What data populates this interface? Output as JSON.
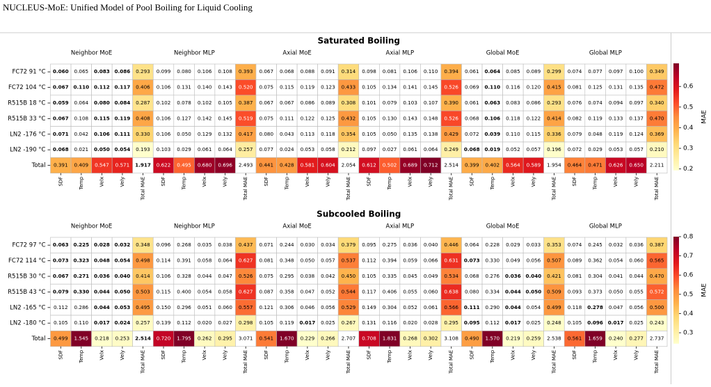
{
  "header": {
    "title": "NUCLEUS-MoE: Unified Model of Pool Boiling for Liquid Cooling"
  },
  "chart_data": [
    {
      "type": "heatmap",
      "title": "Saturated Boiling",
      "colormap": "YlOrRd",
      "groups": [
        "Neighbor MoE",
        "Neighbor MLP",
        "Axial MoE",
        "Axial MLP",
        "Global MoE",
        "Global MLP"
      ],
      "columns": [
        "SDF",
        "Temp",
        "Velx",
        "Vely",
        "Total MAE"
      ],
      "rows": [
        "FC72 91 °C",
        "FC72 104 °C",
        "R515B 18 °C",
        "R515B 33 °C",
        "LN2 -176 °C",
        "LN2 -190 °C",
        "Total"
      ],
      "values": [
        [
          0.06,
          0.065,
          0.083,
          0.086,
          0.293,
          0.099,
          0.08,
          0.106,
          0.108,
          0.393,
          0.067,
          0.068,
          0.088,
          0.091,
          0.314,
          0.098,
          0.081,
          0.106,
          0.11,
          0.394,
          0.061,
          0.064,
          0.085,
          0.089,
          0.299,
          0.074,
          0.077,
          0.097,
          0.1,
          0.349
        ],
        [
          0.067,
          0.11,
          0.112,
          0.117,
          0.406,
          0.106,
          0.131,
          0.14,
          0.143,
          0.52,
          0.075,
          0.115,
          0.119,
          0.123,
          0.433,
          0.105,
          0.134,
          0.141,
          0.145,
          0.526,
          0.069,
          0.11,
          0.116,
          0.12,
          0.415,
          0.081,
          0.125,
          0.131,
          0.135,
          0.472
        ],
        [
          0.059,
          0.064,
          0.08,
          0.084,
          0.287,
          0.102,
          0.078,
          0.102,
          0.105,
          0.387,
          0.067,
          0.067,
          0.086,
          0.089,
          0.308,
          0.101,
          0.079,
          0.103,
          0.107,
          0.39,
          0.061,
          0.063,
          0.083,
          0.086,
          0.293,
          0.076,
          0.074,
          0.094,
          0.097,
          0.34
        ],
        [
          0.067,
          0.108,
          0.115,
          0.119,
          0.408,
          0.106,
          0.127,
          0.142,
          0.145,
          0.519,
          0.075,
          0.111,
          0.122,
          0.125,
          0.432,
          0.105,
          0.13,
          0.143,
          0.148,
          0.526,
          0.068,
          0.106,
          0.118,
          0.122,
          0.414,
          0.082,
          0.119,
          0.133,
          0.137,
          0.47
        ],
        [
          0.071,
          0.042,
          0.106,
          0.111,
          0.33,
          0.106,
          0.05,
          0.129,
          0.132,
          0.417,
          0.08,
          0.043,
          0.113,
          0.118,
          0.354,
          0.105,
          0.05,
          0.135,
          0.138,
          0.429,
          0.072,
          0.039,
          0.11,
          0.115,
          0.336,
          0.079,
          0.048,
          0.119,
          0.124,
          0.369
        ],
        [
          0.068,
          0.021,
          0.05,
          0.054,
          0.193,
          0.103,
          0.029,
          0.061,
          0.064,
          0.257,
          0.077,
          0.024,
          0.053,
          0.058,
          0.212,
          0.097,
          0.027,
          0.061,
          0.064,
          0.249,
          0.068,
          0.019,
          0.052,
          0.057,
          0.196,
          0.072,
          0.029,
          0.053,
          0.057,
          0.21
        ],
        [
          0.391,
          0.409,
          0.547,
          0.571,
          1.917,
          0.622,
          0.495,
          0.68,
          0.696,
          2.493,
          0.441,
          0.428,
          0.581,
          0.604,
          2.054,
          0.612,
          0.502,
          0.689,
          0.712,
          2.514,
          0.399,
          0.402,
          0.564,
          0.589,
          1.954,
          0.464,
          0.471,
          0.626,
          0.65,
          2.211
        ]
      ],
      "value_labels": [
        [
          "0.060",
          "0.065",
          "0.083",
          "0.086",
          "0.293",
          "0.099",
          "0.080",
          "0.106",
          "0.108",
          "0.393",
          "0.067",
          "0.068",
          "0.088",
          "0.091",
          "0.314",
          "0.098",
          "0.081",
          "0.106",
          "0.110",
          "0.394",
          "0.061",
          "0.064",
          "0.085",
          "0.089",
          "0.299",
          "0.074",
          "0.077",
          "0.097",
          "0.100",
          "0.349"
        ],
        [
          "0.067",
          "0.110",
          "0.112",
          "0.117",
          "0.406",
          "0.106",
          "0.131",
          "0.140",
          "0.143",
          "0.520",
          "0.075",
          "0.115",
          "0.119",
          "0.123",
          "0.433",
          "0.105",
          "0.134",
          "0.141",
          "0.145",
          "0.526",
          "0.069",
          "0.110",
          "0.116",
          "0.120",
          "0.415",
          "0.081",
          "0.125",
          "0.131",
          "0.135",
          "0.472"
        ],
        [
          "0.059",
          "0.064",
          "0.080",
          "0.084",
          "0.287",
          "0.102",
          "0.078",
          "0.102",
          "0.105",
          "0.387",
          "0.067",
          "0.067",
          "0.086",
          "0.089",
          "0.308",
          "0.101",
          "0.079",
          "0.103",
          "0.107",
          "0.390",
          "0.061",
          "0.063",
          "0.083",
          "0.086",
          "0.293",
          "0.076",
          "0.074",
          "0.094",
          "0.097",
          "0.340"
        ],
        [
          "0.067",
          "0.108",
          "0.115",
          "0.119",
          "0.408",
          "0.106",
          "0.127",
          "0.142",
          "0.145",
          "0.519",
          "0.075",
          "0.111",
          "0.122",
          "0.125",
          "0.432",
          "0.105",
          "0.130",
          "0.143",
          "0.148",
          "0.526",
          "0.068",
          "0.106",
          "0.118",
          "0.122",
          "0.414",
          "0.082",
          "0.119",
          "0.133",
          "0.137",
          "0.470"
        ],
        [
          "0.071",
          "0.042",
          "0.106",
          "0.111",
          "0.330",
          "0.106",
          "0.050",
          "0.129",
          "0.132",
          "0.417",
          "0.080",
          "0.043",
          "0.113",
          "0.118",
          "0.354",
          "0.105",
          "0.050",
          "0.135",
          "0.138",
          "0.429",
          "0.072",
          "0.039",
          "0.110",
          "0.115",
          "0.336",
          "0.079",
          "0.048",
          "0.119",
          "0.124",
          "0.369"
        ],
        [
          "0.068",
          "0.021",
          "0.050",
          "0.054",
          "0.193",
          "0.103",
          "0.029",
          "0.061",
          "0.064",
          "0.257",
          "0.077",
          "0.024",
          "0.053",
          "0.058",
          "0.212",
          "0.097",
          "0.027",
          "0.061",
          "0.064",
          "0.249",
          "0.068",
          "0.019",
          "0.052",
          "0.057",
          "0.196",
          "0.072",
          "0.029",
          "0.053",
          "0.057",
          "0.210"
        ],
        [
          "0.391",
          "0.409",
          "0.547",
          "0.571",
          "1.917",
          "0.622",
          "0.495",
          "0.680",
          "0.696",
          "2.493",
          "0.441",
          "0.428",
          "0.581",
          "0.604",
          "2.054",
          "0.612",
          "0.502",
          "0.689",
          "0.712",
          "2.514",
          "0.399",
          "0.402",
          "0.564",
          "0.589",
          "1.954",
          "0.464",
          "0.471",
          "0.626",
          "0.650",
          "2.211"
        ]
      ],
      "colorbar": {
        "label": "MAE",
        "lim": [
          0.193,
          0.712
        ],
        "ticks": [
          0.2,
          0.3,
          0.4,
          0.5,
          0.6
        ]
      }
    },
    {
      "type": "heatmap",
      "title": "Subcooled Boiling",
      "colormap": "YlOrRd",
      "groups": [
        "Neighbor MoE",
        "Neighbor MLP",
        "Axial MoE",
        "Axial MLP",
        "Global MoE",
        "Global MLP"
      ],
      "columns": [
        "SDF",
        "Temp",
        "Velx",
        "Vely",
        "Total MAE"
      ],
      "rows": [
        "FC72 97 °C",
        "FC72 114 °C",
        "R515B 30 °C",
        "R515B 43 °C",
        "LN2 -165 °C",
        "LN2 -180 °C",
        "Total"
      ],
      "values": [
        [
          0.063,
          0.225,
          0.028,
          0.032,
          0.348,
          0.096,
          0.268,
          0.035,
          0.038,
          0.437,
          0.071,
          0.244,
          0.03,
          0.034,
          0.379,
          0.095,
          0.275,
          0.036,
          0.04,
          0.446,
          0.064,
          0.228,
          0.029,
          0.033,
          0.353,
          0.074,
          0.245,
          0.032,
          0.036,
          0.387
        ],
        [
          0.073,
          0.323,
          0.048,
          0.054,
          0.498,
          0.114,
          0.391,
          0.058,
          0.064,
          0.627,
          0.081,
          0.348,
          0.05,
          0.057,
          0.537,
          0.112,
          0.394,
          0.059,
          0.066,
          0.631,
          0.073,
          0.33,
          0.049,
          0.056,
          0.507,
          0.089,
          0.362,
          0.054,
          0.06,
          0.565
        ],
        [
          0.067,
          0.271,
          0.036,
          0.04,
          0.414,
          0.106,
          0.328,
          0.044,
          0.047,
          0.526,
          0.075,
          0.295,
          0.038,
          0.042,
          0.45,
          0.105,
          0.335,
          0.045,
          0.049,
          0.534,
          0.068,
          0.276,
          0.036,
          0.04,
          0.421,
          0.081,
          0.304,
          0.041,
          0.044,
          0.47
        ],
        [
          0.079,
          0.33,
          0.044,
          0.05,
          0.503,
          0.115,
          0.4,
          0.054,
          0.058,
          0.627,
          0.087,
          0.358,
          0.047,
          0.052,
          0.544,
          0.117,
          0.406,
          0.055,
          0.06,
          0.638,
          0.08,
          0.334,
          0.044,
          0.05,
          0.509,
          0.093,
          0.373,
          0.05,
          0.055,
          0.572
        ],
        [
          0.112,
          0.286,
          0.044,
          0.053,
          0.495,
          0.15,
          0.296,
          0.051,
          0.06,
          0.557,
          0.121,
          0.306,
          0.046,
          0.056,
          0.529,
          0.149,
          0.304,
          0.052,
          0.061,
          0.566,
          0.111,
          0.29,
          0.044,
          0.054,
          0.499,
          0.118,
          0.278,
          0.047,
          0.056,
          0.5
        ],
        [
          0.105,
          0.11,
          0.017,
          0.024,
          0.257,
          0.139,
          0.112,
          0.02,
          0.027,
          0.298,
          0.105,
          0.119,
          0.017,
          0.025,
          0.267,
          0.131,
          0.116,
          0.02,
          0.028,
          0.295,
          0.095,
          0.112,
          0.017,
          0.025,
          0.248,
          0.105,
          0.096,
          0.017,
          0.025,
          0.243
        ],
        [
          0.499,
          1.545,
          0.218,
          0.253,
          2.514,
          0.72,
          1.795,
          0.262,
          0.295,
          3.071,
          0.541,
          1.67,
          0.229,
          0.266,
          2.707,
          0.708,
          1.831,
          0.268,
          0.302,
          3.108,
          0.49,
          1.57,
          0.219,
          0.259,
          2.538,
          0.561,
          1.659,
          0.24,
          0.277,
          2.737
        ]
      ],
      "value_labels": [
        [
          "0.063",
          "0.225",
          "0.028",
          "0.032",
          "0.348",
          "0.096",
          "0.268",
          "0.035",
          "0.038",
          "0.437",
          "0.071",
          "0.244",
          "0.030",
          "0.034",
          "0.379",
          "0.095",
          "0.275",
          "0.036",
          "0.040",
          "0.446",
          "0.064",
          "0.228",
          "0.029",
          "0.033",
          "0.353",
          "0.074",
          "0.245",
          "0.032",
          "0.036",
          "0.387"
        ],
        [
          "0.073",
          "0.323",
          "0.048",
          "0.054",
          "0.498",
          "0.114",
          "0.391",
          "0.058",
          "0.064",
          "0.627",
          "0.081",
          "0.348",
          "0.050",
          "0.057",
          "0.537",
          "0.112",
          "0.394",
          "0.059",
          "0.066",
          "0.631",
          "0.073",
          "0.330",
          "0.049",
          "0.056",
          "0.507",
          "0.089",
          "0.362",
          "0.054",
          "0.060",
          "0.565"
        ],
        [
          "0.067",
          "0.271",
          "0.036",
          "0.040",
          "0.414",
          "0.106",
          "0.328",
          "0.044",
          "0.047",
          "0.526",
          "0.075",
          "0.295",
          "0.038",
          "0.042",
          "0.450",
          "0.105",
          "0.335",
          "0.045",
          "0.049",
          "0.534",
          "0.068",
          "0.276",
          "0.036",
          "0.040",
          "0.421",
          "0.081",
          "0.304",
          "0.041",
          "0.044",
          "0.470"
        ],
        [
          "0.079",
          "0.330",
          "0.044",
          "0.050",
          "0.503",
          "0.115",
          "0.400",
          "0.054",
          "0.058",
          "0.627",
          "0.087",
          "0.358",
          "0.047",
          "0.052",
          "0.544",
          "0.117",
          "0.406",
          "0.055",
          "0.060",
          "0.638",
          "0.080",
          "0.334",
          "0.044",
          "0.050",
          "0.509",
          "0.093",
          "0.373",
          "0.050",
          "0.055",
          "0.572"
        ],
        [
          "0.112",
          "0.286",
          "0.044",
          "0.053",
          "0.495",
          "0.150",
          "0.296",
          "0.051",
          "0.060",
          "0.557",
          "0.121",
          "0.306",
          "0.046",
          "0.056",
          "0.529",
          "0.149",
          "0.304",
          "0.052",
          "0.061",
          "0.566",
          "0.111",
          "0.290",
          "0.044",
          "0.054",
          "0.499",
          "0.118",
          "0.278",
          "0.047",
          "0.056",
          "0.500"
        ],
        [
          "0.105",
          "0.110",
          "0.017",
          "0.024",
          "0.257",
          "0.139",
          "0.112",
          "0.020",
          "0.027",
          "0.298",
          "0.105",
          "0.119",
          "0.017",
          "0.025",
          "0.267",
          "0.131",
          "0.116",
          "0.020",
          "0.028",
          "0.295",
          "0.095",
          "0.112",
          "0.017",
          "0.025",
          "0.248",
          "0.105",
          "0.096",
          "0.017",
          "0.025",
          "0.243"
        ],
        [
          "0.499",
          "1.545",
          "0.218",
          "0.253",
          "2.514",
          "0.720",
          "1.795",
          "0.262",
          "0.295",
          "3.071",
          "0.541",
          "1.670",
          "0.229",
          "0.266",
          "2.707",
          "0.708",
          "1.831",
          "0.268",
          "0.302",
          "3.108",
          "0.490",
          "1.570",
          "0.219",
          "0.259",
          "2.538",
          "0.561",
          "1.659",
          "0.240",
          "0.277",
          "2.737"
        ]
      ],
      "colorbar": {
        "label": "MAE",
        "lim": [
          0.243,
          0.8
        ],
        "ticks": [
          0.3,
          0.4,
          0.5,
          0.6,
          0.7,
          0.8
        ]
      }
    }
  ]
}
